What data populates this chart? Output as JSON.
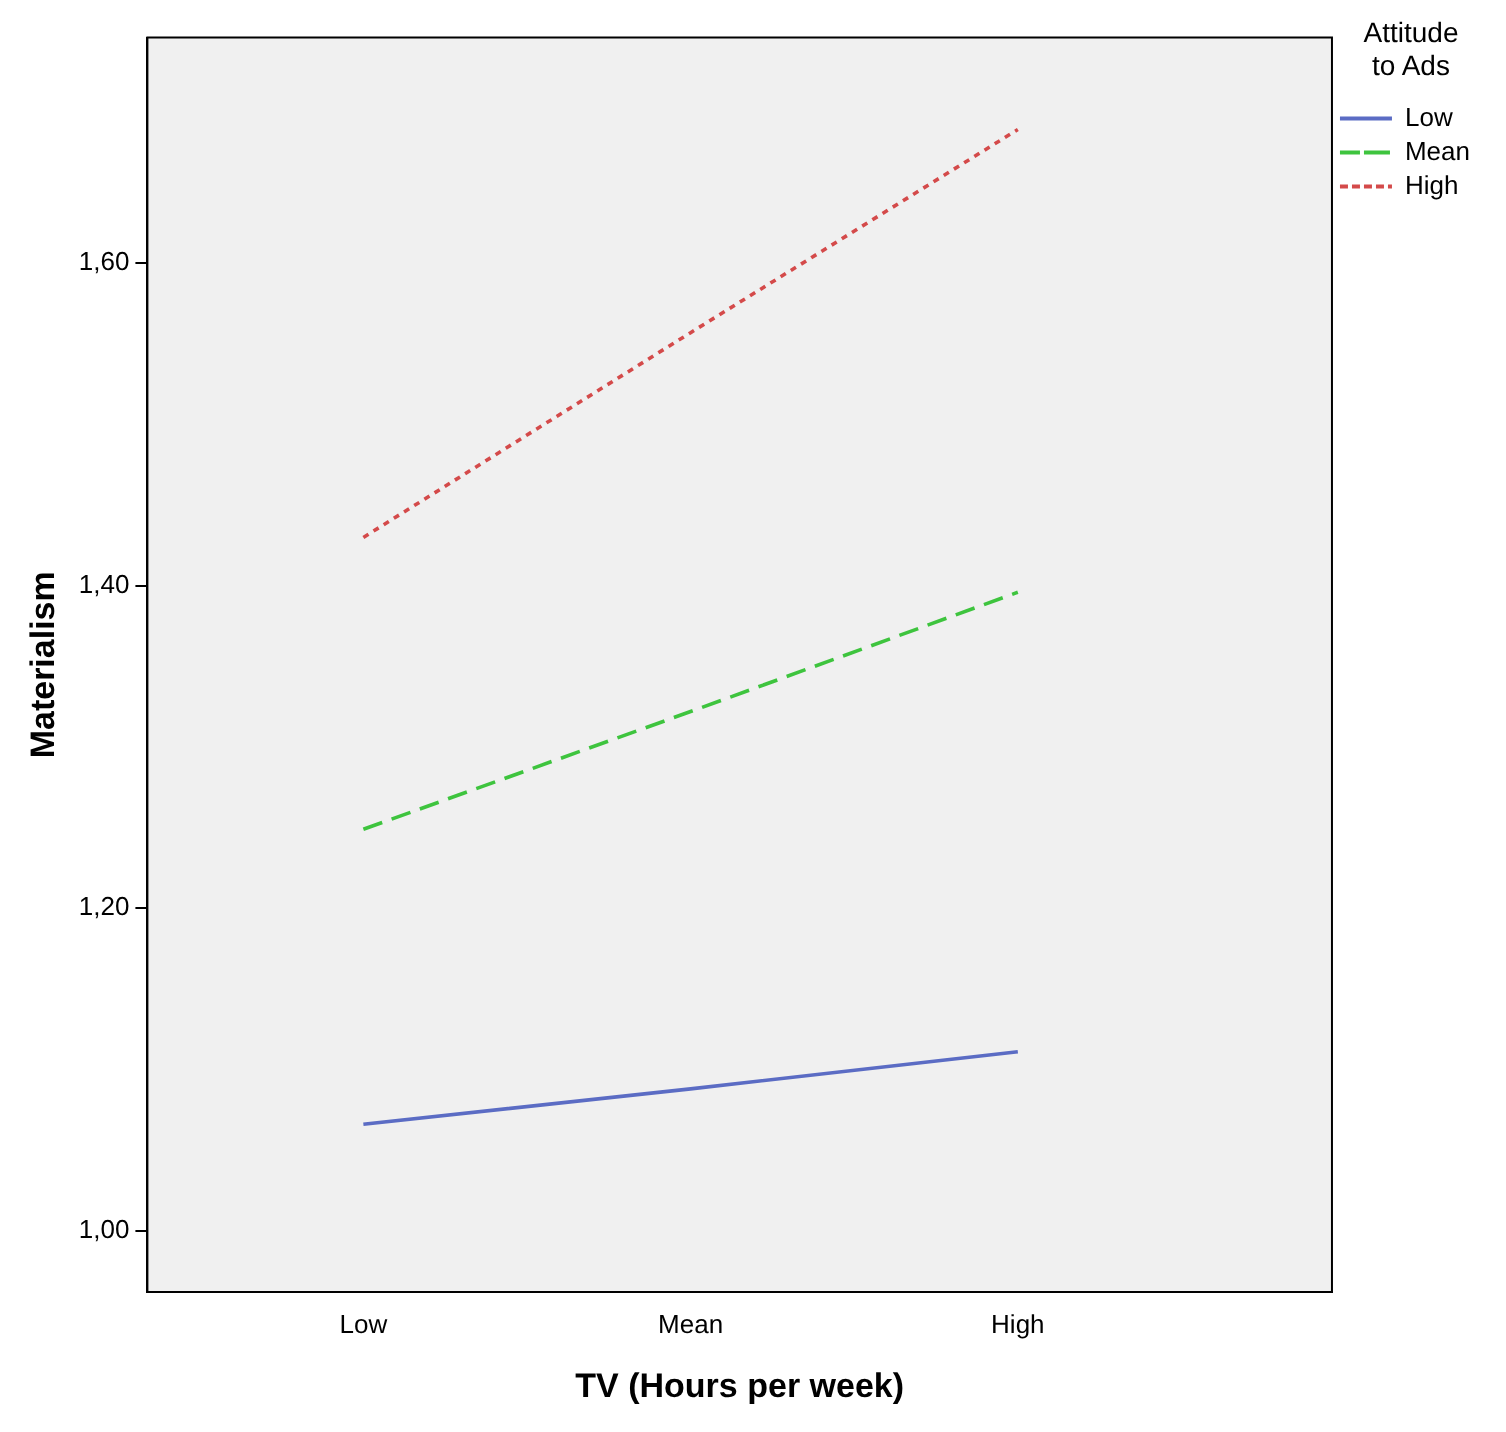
{
  "chart_data": {
    "type": "line",
    "xlabel": "TV (Hours per week)",
    "ylabel": "Materialism",
    "legend_title": "Attitude to Ads",
    "legend": "top right",
    "grid": false,
    "marker": "none",
    "categories": [
      "Low",
      "Mean",
      "High"
    ],
    "ylim": [
      0.962,
      1.74
    ],
    "yticks": [
      {
        "value": 1,
        "label": "1,00"
      },
      {
        "value": 1.2,
        "label": "1,20"
      },
      {
        "value": 1.4,
        "label": "1,40"
      },
      {
        "value": 1.6,
        "label": "1,60"
      }
    ],
    "series": [
      {
        "name": "Low",
        "color": "#5b6cc4",
        "line_style": "solid",
        "values": [
          1.066,
          1.088,
          1.111
        ]
      },
      {
        "name": "Mean",
        "color": "#3ec43e",
        "line_style": "dashed",
        "values": [
          1.249,
          1.322,
          1.396
        ]
      },
      {
        "name": "High",
        "color": "#d44a4a",
        "line_style": "dotted",
        "values": [
          1.43,
          1.557,
          1.683
        ]
      }
    ]
  }
}
